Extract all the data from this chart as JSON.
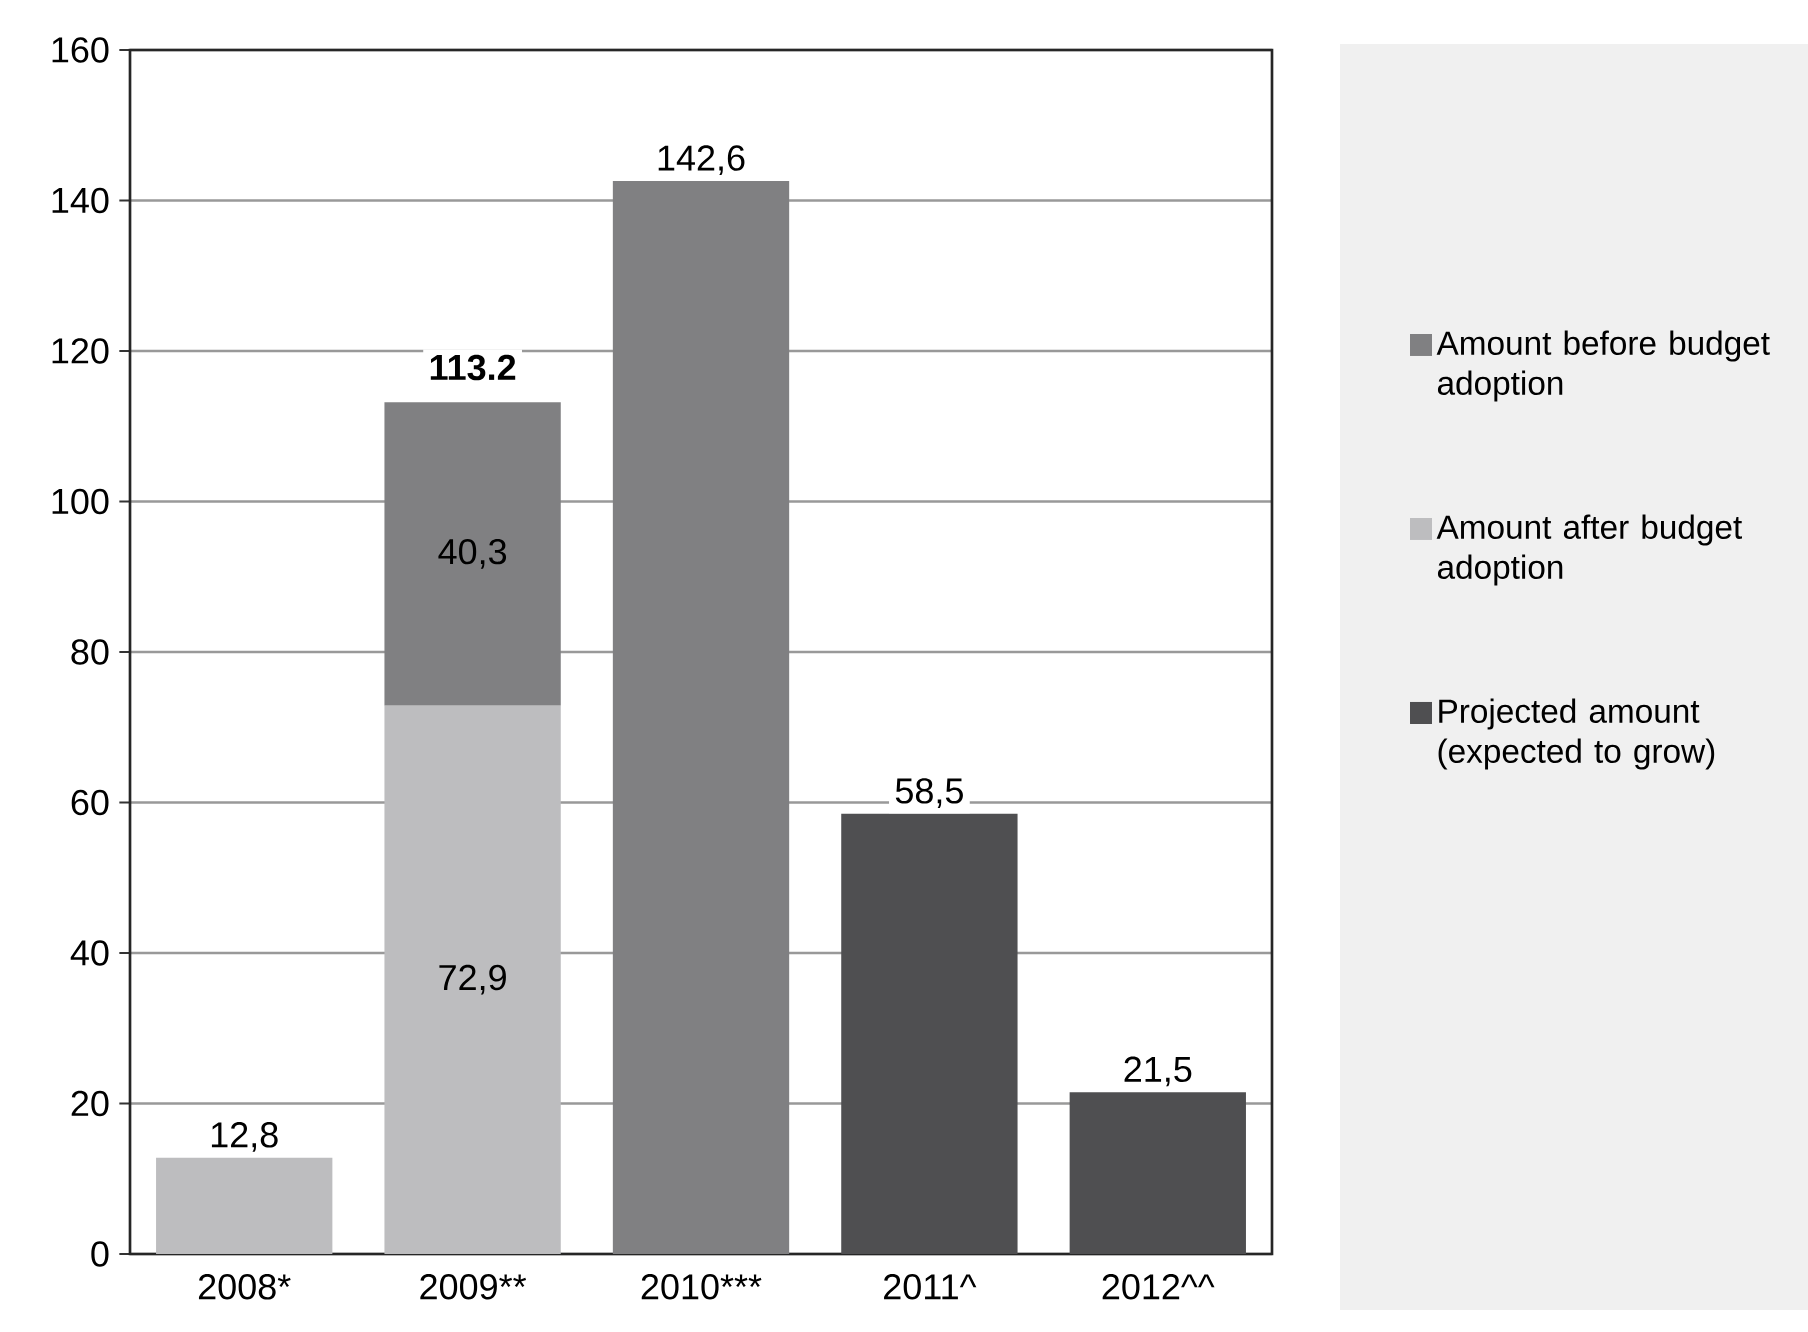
{
  "chart_data": {
    "type": "bar",
    "stacked": true,
    "categories": [
      "2008*",
      "2009**",
      "2010***",
      "2011^",
      "2012^^"
    ],
    "series": [
      {
        "name": "Amount after budget adoption",
        "color": "#bdbdbf",
        "values": [
          12.8,
          72.9,
          null,
          null,
          null
        ],
        "value_labels": [
          "12,8",
          "72,9",
          null,
          null,
          null
        ]
      },
      {
        "name": "Amount before budget adoption",
        "color": "#808082",
        "values": [
          null,
          40.3,
          142.6,
          null,
          null
        ],
        "value_labels": [
          null,
          "40,3",
          "142,6",
          null,
          null
        ]
      },
      {
        "name": "Projected amount (expected to grow)",
        "color": "#4f4f51",
        "values": [
          null,
          null,
          null,
          58.5,
          21.5
        ],
        "value_labels": [
          null,
          null,
          null,
          "58,5",
          "21,5"
        ]
      }
    ],
    "totals": [
      null,
      "113.2",
      null,
      null,
      null
    ],
    "ylim": [
      0,
      160
    ],
    "yticks": [
      0,
      20,
      40,
      60,
      80,
      100,
      120,
      140,
      160
    ],
    "grid": "y",
    "legend": "right"
  }
}
